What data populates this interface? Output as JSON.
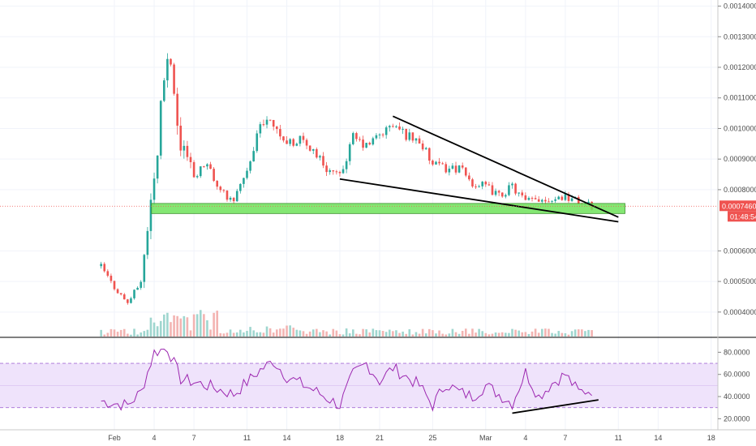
{
  "colors": {
    "up": "#26a69a",
    "down": "#ef5350",
    "up_volume": "#9fd6cf",
    "down_volume": "#f3b4b2",
    "support_zone_fill": "#6ee35a",
    "support_zone_stroke": "#3a8f2a",
    "rsi_line": "#9c27b0",
    "rsi_band": "#efe3fb",
    "rsi_band_border": "#a56fd6",
    "trendline": "#000000",
    "price_tag": "#ef5350",
    "grid": "#f0f3fa"
  },
  "chart_data": [
    {
      "type": "candlestick",
      "title": "",
      "y_scale": "linear",
      "ylim": [
        0.00032,
        0.00142
      ],
      "y_ticks": [
        "0.0014000",
        "0.0013000",
        "0.0012000",
        "0.0011000",
        "0.0010000",
        "0.0009000",
        "0.0008000",
        "0.0006000",
        "0.0005000",
        "0.0004000"
      ],
      "x_ticks": [
        "Feb",
        "4",
        "7",
        "11",
        "14",
        "18",
        "21",
        "25",
        "Mar",
        "4",
        "7",
        "11",
        "14",
        "18"
      ],
      "xlim_days": [
        "Jan 30",
        "Mar 19"
      ],
      "grid": true,
      "last_price": "0.0007460",
      "countdown": "01:48:54",
      "price_keypoints": [
        {
          "date": "Jan 31",
          "price": 0.00055
        },
        {
          "date": "Feb 1",
          "price": 0.00048
        },
        {
          "date": "Feb 2",
          "price": 0.00043
        },
        {
          "date": "Feb 3",
          "price": 0.0005
        },
        {
          "date": "Feb 4",
          "price": 0.00085
        },
        {
          "date": "Feb 5",
          "price": 0.00125
        },
        {
          "date": "Feb 6",
          "price": 0.00093
        },
        {
          "date": "Feb 7",
          "price": 0.00085
        },
        {
          "date": "Feb 8",
          "price": 0.00088
        },
        {
          "date": "Feb 9",
          "price": 0.00079
        },
        {
          "date": "Feb 10",
          "price": 0.00077
        },
        {
          "date": "Feb 11",
          "price": 0.00085
        },
        {
          "date": "Feb 12",
          "price": 0.00101
        },
        {
          "date": "Feb 13",
          "price": 0.00102
        },
        {
          "date": "Feb 14",
          "price": 0.00095
        },
        {
          "date": "Feb 15",
          "price": 0.00096
        },
        {
          "date": "Feb 16",
          "price": 0.00093
        },
        {
          "date": "Feb 17",
          "price": 0.00087
        },
        {
          "date": "Feb 18",
          "price": 0.00084
        },
        {
          "date": "Feb 19",
          "price": 0.00097
        },
        {
          "date": "Feb 20",
          "price": 0.00094
        },
        {
          "date": "Feb 21",
          "price": 0.00098
        },
        {
          "date": "Feb 22",
          "price": 0.00101
        },
        {
          "date": "Feb 23",
          "price": 0.00098
        },
        {
          "date": "Feb 24",
          "price": 0.00096
        },
        {
          "date": "Feb 25",
          "price": 0.00088
        },
        {
          "date": "Feb 26",
          "price": 0.00087
        },
        {
          "date": "Feb 27",
          "price": 0.00087
        },
        {
          "date": "Feb 28",
          "price": 0.00082
        },
        {
          "date": "Mar 1",
          "price": 0.00081
        },
        {
          "date": "Mar 2",
          "price": 0.00078
        },
        {
          "date": "Mar 3",
          "price": 0.00081
        },
        {
          "date": "Mar 4",
          "price": 0.00076
        },
        {
          "date": "Mar 5",
          "price": 0.00077
        },
        {
          "date": "Mar 6",
          "price": 0.00077
        },
        {
          "date": "Mar 7",
          "price": 0.00078
        },
        {
          "date": "Mar 8",
          "price": 0.00076
        },
        {
          "date": "Mar 9",
          "price": 0.000746
        }
      ],
      "support_zone": {
        "from_date": "Feb 3.8",
        "to_date": "Mar 11.5",
        "low": 0.000722,
        "high": 0.000755
      },
      "trendlines": [
        {
          "name": "upper",
          "from": {
            "date": "Feb 22",
            "price": 0.00104
          },
          "to": {
            "date": "Mar 11",
            "price": 0.00071
          }
        },
        {
          "name": "lower",
          "from": {
            "date": "Feb 18",
            "price": 0.000835
          },
          "to": {
            "date": "Mar 11",
            "price": 0.000695
          }
        }
      ]
    },
    {
      "type": "line",
      "title": "",
      "ylim": [
        10,
        92
      ],
      "y_ticks": [
        "80.0000",
        "60.0000",
        "40.0000",
        "20.0000"
      ],
      "band": [
        30,
        70
      ],
      "rsi_keypoints": [
        {
          "date": "Jan 31",
          "value": 36
        },
        {
          "date": "Feb 2",
          "value": 32
        },
        {
          "date": "Feb 3",
          "value": 44
        },
        {
          "date": "Feb 4",
          "value": 80
        },
        {
          "date": "Feb 5",
          "value": 84
        },
        {
          "date": "Feb 6",
          "value": 56
        },
        {
          "date": "Feb 8",
          "value": 50
        },
        {
          "date": "Feb 10",
          "value": 42
        },
        {
          "date": "Feb 12",
          "value": 64
        },
        {
          "date": "Feb 13",
          "value": 72
        },
        {
          "date": "Feb 14",
          "value": 58
        },
        {
          "date": "Feb 16",
          "value": 46
        },
        {
          "date": "Feb 18",
          "value": 32
        },
        {
          "date": "Feb 19",
          "value": 60
        },
        {
          "date": "Feb 20",
          "value": 70
        },
        {
          "date": "Feb 21",
          "value": 54
        },
        {
          "date": "Feb 22",
          "value": 66
        },
        {
          "date": "Feb 23",
          "value": 58
        },
        {
          "date": "Feb 24",
          "value": 50
        },
        {
          "date": "Feb 25",
          "value": 32
        },
        {
          "date": "Feb 26",
          "value": 52
        },
        {
          "date": "Feb 27",
          "value": 44
        },
        {
          "date": "Feb 28",
          "value": 40
        },
        {
          "date": "Mar 1",
          "value": 50
        },
        {
          "date": "Mar 2",
          "value": 42
        },
        {
          "date": "Mar 3",
          "value": 34
        },
        {
          "date": "Mar 4",
          "value": 62
        },
        {
          "date": "Mar 5",
          "value": 40
        },
        {
          "date": "Mar 6",
          "value": 52
        },
        {
          "date": "Mar 7",
          "value": 60
        },
        {
          "date": "Mar 8",
          "value": 44
        },
        {
          "date": "Mar 9",
          "value": 46
        }
      ],
      "divergence_line": {
        "from": {
          "date": "Mar 3",
          "value": 25
        },
        "to": {
          "date": "Mar 9.5",
          "value": 37
        }
      }
    }
  ]
}
